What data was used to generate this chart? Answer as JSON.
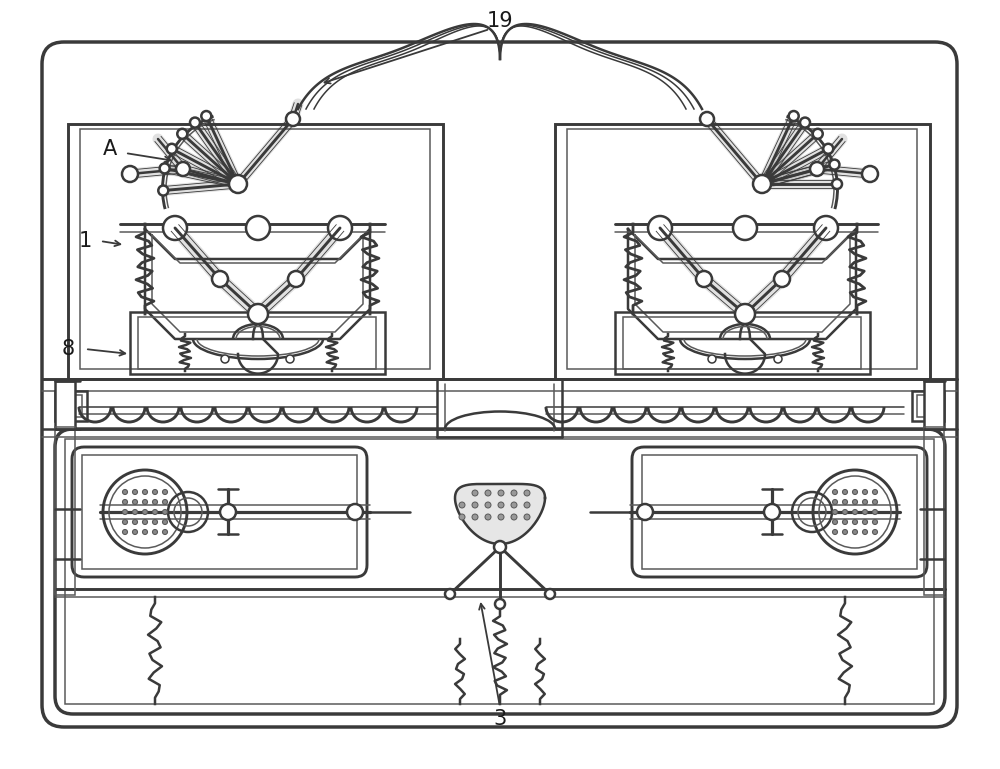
{
  "bg_color": "#ffffff",
  "lc": "#3a3a3a",
  "lc2": "#5a5a5a",
  "lw1": 1.8,
  "lw2": 1.1,
  "lw3": 2.5,
  "fig_w": 10.0,
  "fig_h": 7.69,
  "dpi": 100,
  "label_fs": 15,
  "label_color": "#1a1a1a"
}
